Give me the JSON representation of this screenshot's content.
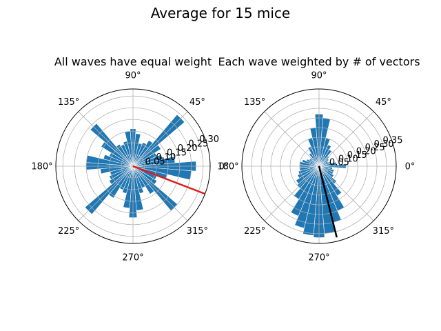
{
  "suptitle": "Average for 15 mice",
  "chart_data": [
    {
      "type": "polar-histogram",
      "title": "All waves have equal weight",
      "angle_ticks_deg": [
        0,
        45,
        90,
        135,
        180,
        225,
        270,
        315
      ],
      "angle_tick_labels": [
        "0°",
        "45°",
        "90°",
        "135°",
        "180°",
        "225°",
        "270°",
        "315°"
      ],
      "r_ticks": [
        0.05,
        0.1,
        0.15,
        0.2,
        0.25,
        0.3
      ],
      "r_tick_labels": [
        "0.05",
        "0.10",
        "0.15",
        "0.20",
        "0.25",
        "0.30"
      ],
      "rlim": [
        0,
        0.33
      ],
      "r_label_angle_deg": 22.5,
      "bin_width_deg": 9,
      "bins_deg": [
        0,
        9,
        18,
        27,
        36,
        45,
        54,
        63,
        72,
        81,
        90,
        99,
        108,
        117,
        126,
        135,
        144,
        153,
        162,
        171,
        180,
        189,
        198,
        207,
        216,
        225,
        234,
        243,
        252,
        261,
        270,
        279,
        288,
        297,
        306,
        315,
        324,
        333,
        342,
        351
      ],
      "values": [
        0.27,
        0.18,
        0.13,
        0.11,
        0.14,
        0.29,
        0.13,
        0.11,
        0.1,
        0.14,
        0.16,
        0.15,
        0.11,
        0.1,
        0.11,
        0.24,
        0.16,
        0.11,
        0.13,
        0.2,
        0.2,
        0.14,
        0.1,
        0.11,
        0.12,
        0.27,
        0.16,
        0.11,
        0.12,
        0.18,
        0.22,
        0.19,
        0.12,
        0.1,
        0.14,
        0.25,
        0.12,
        0.11,
        0.15,
        0.25
      ],
      "mean_vector": {
        "angle_deg": 339,
        "length": 0.33,
        "color": "#dd1c1c"
      },
      "bar_color": "#1f77b4",
      "grid": true
    },
    {
      "type": "polar-histogram",
      "title": "Each wave weighted by # of vectors",
      "angle_ticks_deg": [
        0,
        45,
        90,
        135,
        180,
        225,
        270,
        315
      ],
      "angle_tick_labels": [
        "0°",
        "45°",
        "90°",
        "135°",
        "180°",
        "225°",
        "270°",
        "315°"
      ],
      "r_ticks": [
        0.05,
        0.1,
        0.15,
        0.2,
        0.25,
        0.3,
        0.35
      ],
      "r_tick_labels": [
        "0.05",
        "0.10",
        "0.15",
        "0.20",
        "0.25",
        "0.30",
        "0.35"
      ],
      "rlim": [
        0,
        0.4
      ],
      "r_label_angle_deg": 22.5,
      "bin_width_deg": 9,
      "bins_deg": [
        0,
        9,
        18,
        27,
        36,
        45,
        54,
        63,
        72,
        81,
        90,
        99,
        108,
        117,
        126,
        135,
        144,
        153,
        162,
        171,
        180,
        189,
        198,
        207,
        216,
        225,
        234,
        243,
        252,
        261,
        270,
        279,
        288,
        297,
        306,
        315,
        324,
        333,
        342,
        351
      ],
      "values": [
        0.14,
        0.09,
        0.06,
        0.05,
        0.06,
        0.07,
        0.1,
        0.12,
        0.15,
        0.25,
        0.27,
        0.2,
        0.15,
        0.11,
        0.08,
        0.06,
        0.06,
        0.07,
        0.09,
        0.1,
        0.1,
        0.1,
        0.11,
        0.12,
        0.14,
        0.15,
        0.2,
        0.28,
        0.33,
        0.36,
        0.37,
        0.35,
        0.3,
        0.25,
        0.18,
        0.12,
        0.09,
        0.08,
        0.08,
        0.07
      ],
      "mean_vector": {
        "angle_deg": 284,
        "length": 0.38,
        "color": "#000000"
      },
      "bar_color": "#1f77b4",
      "grid": true
    }
  ]
}
